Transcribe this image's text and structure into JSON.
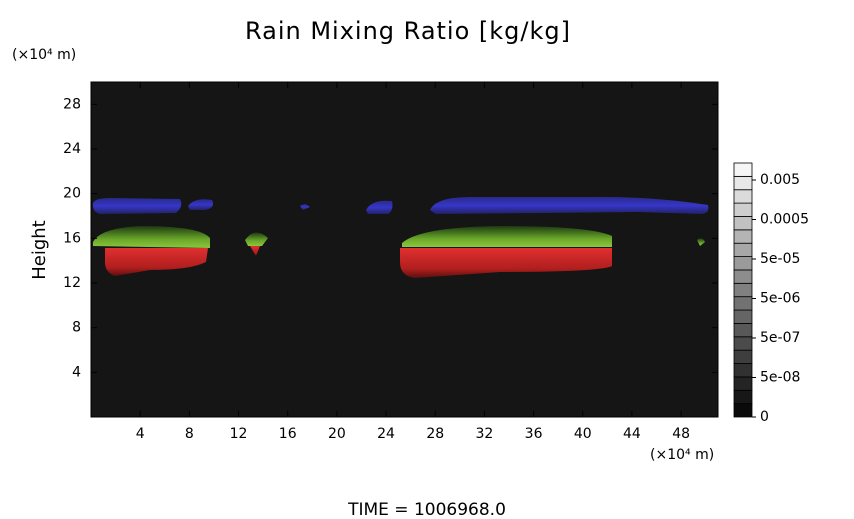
{
  "chart_data": {
    "type": "contour",
    "title": "Rain Mixing Ratio [kg/kg]",
    "ylabel": "Height",
    "yunit": "(×10⁴ m)",
    "xunit": "(×10⁴ m)",
    "xlim": [
      0,
      51
    ],
    "xticks": [
      4,
      8,
      12,
      16,
      20,
      24,
      28,
      32,
      36,
      40,
      44,
      48
    ],
    "ylim": [
      0,
      30
    ],
    "yticks": [
      4,
      8,
      12,
      16,
      20,
      24,
      28
    ],
    "colorbar_ticks": [
      0,
      {
        "value": 5e-08,
        "label": "5e-08"
      },
      {
        "value": 5e-07,
        "label": "5e-07"
      },
      {
        "value": 5e-06,
        "label": "5e-06"
      },
      {
        "value": 5e-05,
        "label": "5e-05"
      },
      0.0005,
      0.005
    ],
    "annotation": "TIME = 1006968.0"
  }
}
